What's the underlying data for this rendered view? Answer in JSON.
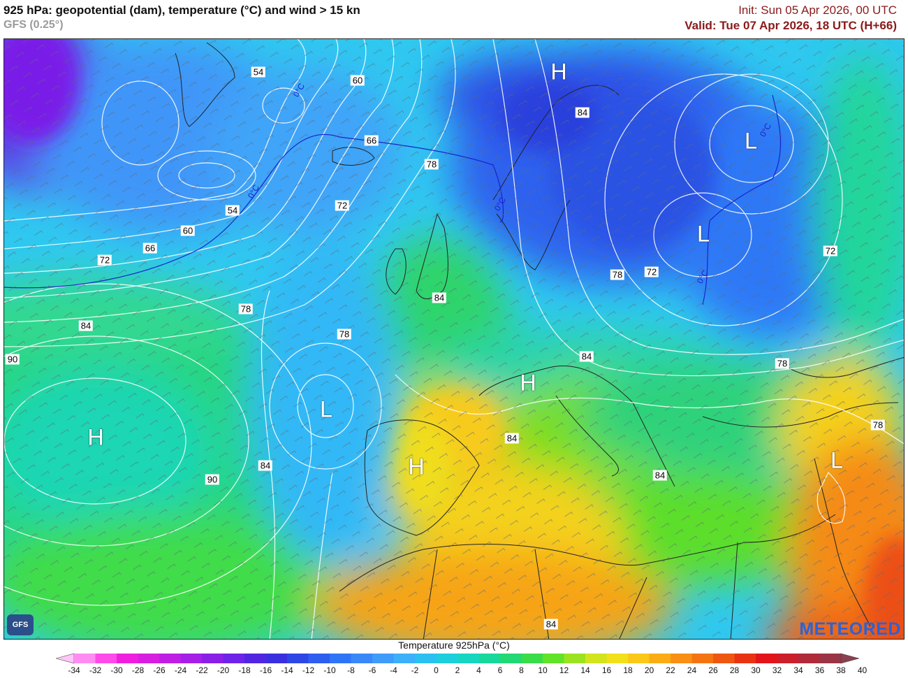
{
  "header": {
    "title": "925 hPa: geopotential (dam), temperature (°C) and wind > 15 kn",
    "model": "GFS (0.25°)",
    "init": "Init: Sun 05 Apr 2026, 00 UTC",
    "valid": "Valid: Tue 07 Apr 2026, 18 UTC (H+66)"
  },
  "map": {
    "contour_labels": [
      {
        "text": "54"
      },
      {
        "text": "60"
      },
      {
        "text": "66"
      },
      {
        "text": "78"
      },
      {
        "text": "72"
      },
      {
        "text": "54"
      },
      {
        "text": "60"
      },
      {
        "text": "66"
      },
      {
        "text": "72"
      },
      {
        "text": "78"
      },
      {
        "text": "84"
      },
      {
        "text": "90"
      },
      {
        "text": "84"
      },
      {
        "text": "78"
      },
      {
        "text": "84"
      },
      {
        "text": "90"
      },
      {
        "text": "84"
      },
      {
        "text": "84"
      },
      {
        "text": "84"
      },
      {
        "text": "84"
      },
      {
        "text": "78"
      },
      {
        "text": "72"
      },
      {
        "text": "72"
      },
      {
        "text": "78"
      },
      {
        "text": "78"
      },
      {
        "text": "84"
      }
    ],
    "pressure_centers": [
      {
        "type": "H"
      },
      {
        "type": "L"
      },
      {
        "type": "L"
      },
      {
        "type": "H"
      },
      {
        "type": "L"
      },
      {
        "type": "H"
      },
      {
        "type": "H"
      },
      {
        "type": "L"
      }
    ],
    "freezing_labels": [
      "0°C",
      "0°C",
      "0°C",
      "0°C",
      "0°C"
    ],
    "logo_model": "GFS",
    "logo_brand": "METEORED"
  },
  "legend": {
    "title": "Temperature 925hPa (°C)",
    "ticks": [
      "-34",
      "-32",
      "-30",
      "-28",
      "-26",
      "-24",
      "-22",
      "-20",
      "-18",
      "-16",
      "-14",
      "-12",
      "-10",
      "-8",
      "-6",
      "-4",
      "-2",
      "0",
      "2",
      "4",
      "6",
      "8",
      "10",
      "12",
      "14",
      "16",
      "18",
      "20",
      "22",
      "24",
      "26",
      "28",
      "30",
      "32",
      "34",
      "36",
      "38",
      "40"
    ],
    "colors": [
      "#ffc6f8",
      "#ff8cf2",
      "#ff4be8",
      "#f01fe0",
      "#d81ee0",
      "#c11ee3",
      "#a61fe6",
      "#8a1fe8",
      "#6f22e8",
      "#5226e0",
      "#3a2fe0",
      "#2e46e6",
      "#2d5ef0",
      "#2f74f6",
      "#3a88f8",
      "#3f9cf9",
      "#3cb0f8",
      "#2cc0f2",
      "#1dcedd",
      "#17d6c0",
      "#17d89c",
      "#22d874",
      "#3adc4a",
      "#62e22a",
      "#9be320",
      "#d2e41e",
      "#f3e01c",
      "#fbc718",
      "#fbac15",
      "#f99014",
      "#f57412",
      "#ef5612",
      "#e83412",
      "#e2161a",
      "#cc1f2b",
      "#b02a3a",
      "#9a3546",
      "#8a4050"
    ]
  }
}
